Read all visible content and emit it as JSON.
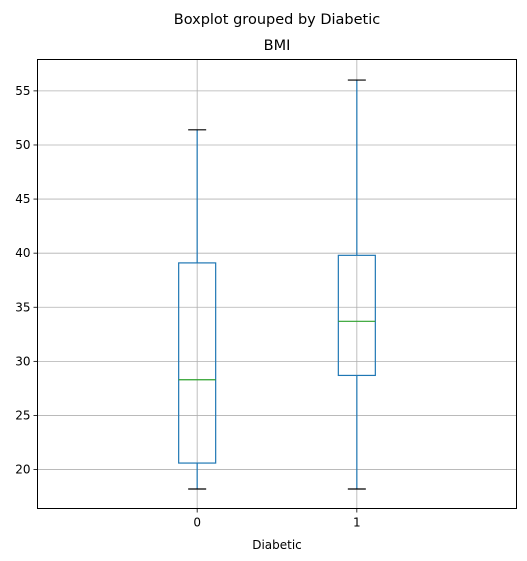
{
  "chart_data": {
    "type": "boxplot",
    "suptitle": "Boxplot grouped by Diabetic",
    "title": "BMI",
    "xlabel": "Diabetic",
    "ylabel": "",
    "categories": [
      "0",
      "1"
    ],
    "boxes": [
      {
        "category": "0",
        "whisker_low": 18.2,
        "q1": 20.6,
        "median": 28.3,
        "q3": 39.1,
        "whisker_high": 51.4
      },
      {
        "category": "1",
        "whisker_low": 18.2,
        "q1": 28.7,
        "median": 33.7,
        "q3": 39.8,
        "whisker_high": 56.0
      }
    ],
    "ylim": [
      16.4,
      57.9
    ],
    "yticks": [
      20,
      25,
      30,
      35,
      40,
      45,
      50,
      55
    ],
    "grid": true,
    "colors": {
      "box": "#1f77b4",
      "median": "#2ca02c",
      "cap": "#000000",
      "grid": "#b0b0b0",
      "axes": "#000000"
    }
  }
}
